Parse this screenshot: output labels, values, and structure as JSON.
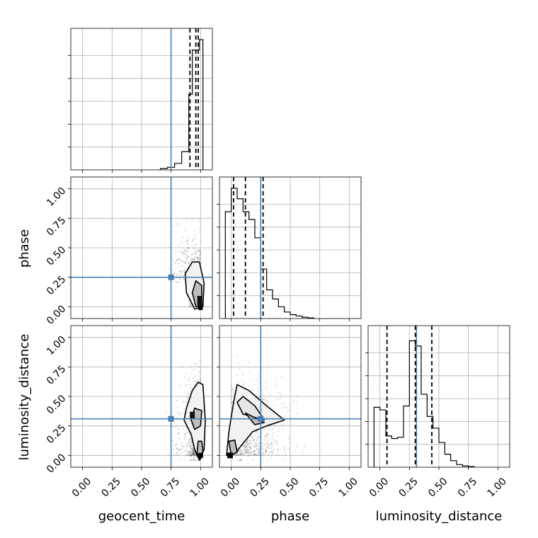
{
  "chart_data": {
    "type": "corner",
    "parameters": [
      "geocent_time",
      "phase",
      "luminosity_distance"
    ],
    "tick_labels": [
      "0.00",
      "0.25",
      "0.50",
      "0.75",
      "1.00"
    ],
    "range": [
      -0.1,
      1.1
    ],
    "truths": {
      "geocent_time": 0.75,
      "phase": 0.25,
      "luminosity_distance": 0.31
    },
    "truth_color": "#4682b4",
    "sample_color": "#000000",
    "quantiles": {
      "geocent_time": [
        0.91,
        0.96,
        0.98
      ],
      "phase": [
        0.02,
        0.12,
        0.27
      ],
      "luminosity_distance": [
        0.06,
        0.3,
        0.44
      ]
    },
    "marginals": {
      "geocent_time": {
        "bin_edges": [
          0.66,
          0.72,
          0.78,
          0.84,
          0.9,
          0.93,
          0.96,
          0.99,
          1.02
        ],
        "counts": [
          0.01,
          0.02,
          0.05,
          0.14,
          0.58,
          0.92,
          0.92,
          1.0
        ]
      },
      "phase": {
        "bin_edges": [
          -0.05,
          0.0,
          0.05,
          0.1,
          0.15,
          0.2,
          0.25,
          0.3,
          0.35,
          0.4,
          0.45,
          0.5,
          0.55,
          0.6,
          0.65,
          0.7
        ],
        "counts": [
          0.82,
          1.0,
          0.92,
          0.82,
          0.76,
          0.62,
          0.38,
          0.22,
          0.15,
          0.09,
          0.05,
          0.03,
          0.02,
          0.01,
          0.005
        ]
      },
      "luminosity_distance": {
        "bin_edges": [
          -0.05,
          0.0,
          0.05,
          0.1,
          0.15,
          0.2,
          0.25,
          0.3,
          0.35,
          0.4,
          0.45,
          0.5,
          0.55,
          0.6,
          0.65,
          0.7,
          0.75,
          0.8
        ],
        "counts": [
          0.46,
          0.44,
          0.24,
          0.22,
          0.23,
          0.47,
          0.97,
          0.93,
          0.56,
          0.39,
          0.3,
          0.19,
          0.1,
          0.05,
          0.02,
          0.01,
          0.005
        ]
      }
    },
    "grid": true
  }
}
